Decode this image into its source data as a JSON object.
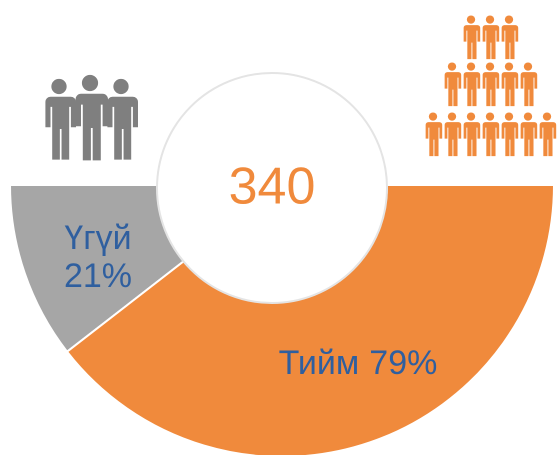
{
  "chart_data": {
    "type": "pie",
    "categories": [
      "Үгүй",
      "Тийм"
    ],
    "values": [
      21,
      79
    ],
    "value_labels": [
      "21%",
      "79%"
    ],
    "colors": [
      "#a6a6a6",
      "#f08a3c"
    ],
    "center_label": "340"
  }
}
